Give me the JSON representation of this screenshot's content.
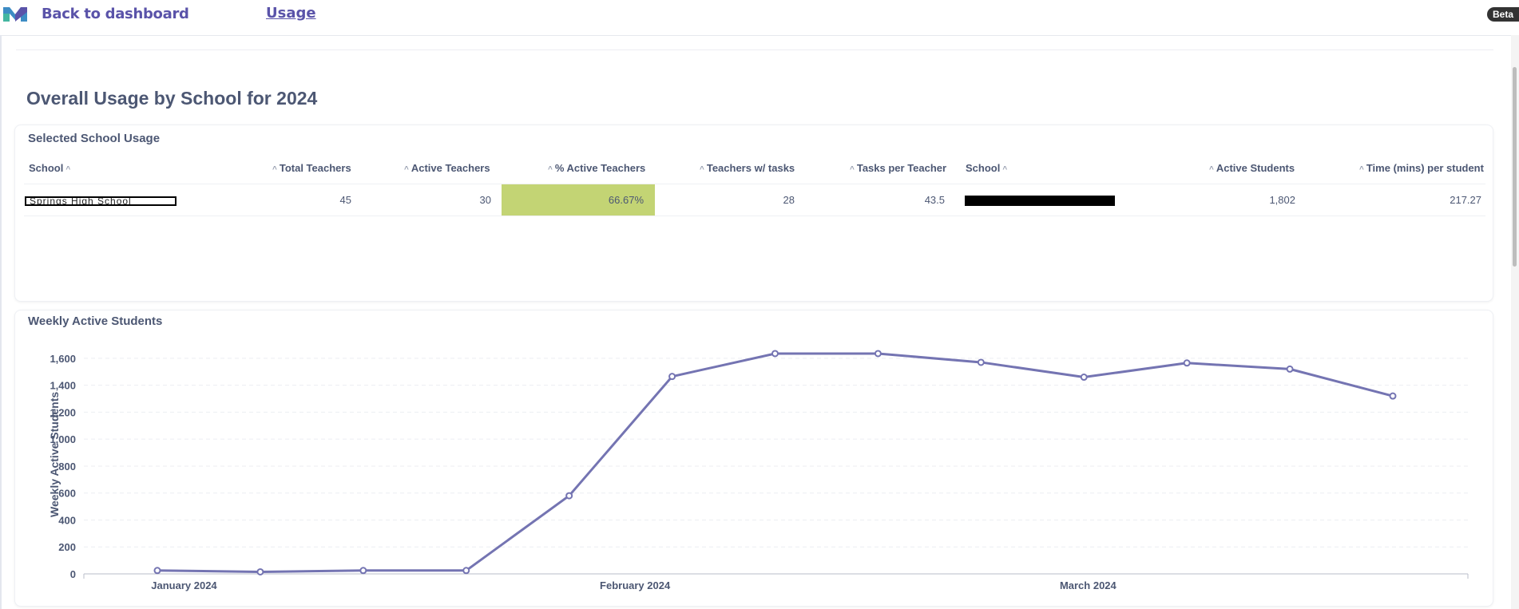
{
  "header": {
    "back_label": "Back to dashboard",
    "usage_label": "Usage",
    "beta_label": "Beta"
  },
  "page": {
    "title": "Overall Usage by School for 2024"
  },
  "school_usage": {
    "title": "Selected School Usage",
    "columns": [
      "School",
      "Total Teachers",
      "Active Teachers",
      "% Active Teachers",
      "Teachers w/ tasks",
      "Tasks per Teacher",
      "School",
      "Active Students",
      "Time (mins) per student"
    ],
    "row": {
      "school": "Springs High School",
      "total_teachers": "45",
      "active_teachers": "30",
      "pct_active": "66.67%",
      "teachers_with_tasks": "28",
      "tasks_per_teacher": "43.5",
      "active_students": "1,802",
      "time_per_student": "217.27"
    },
    "highlight_color": "#c3d474"
  },
  "chart": {
    "title": "Weekly Active Students"
  },
  "chart_data": {
    "type": "line",
    "title": "Weekly Active Students",
    "xlabel": "",
    "ylabel": "Weekly Active Students",
    "ylim": [
      0,
      1700
    ],
    "yticks": [
      "0",
      "200",
      "400",
      "600",
      "800",
      "1,000",
      "1,200",
      "1,400",
      "1,600"
    ],
    "ytick_values": [
      0,
      200,
      400,
      600,
      800,
      1000,
      1200,
      1400,
      1600
    ],
    "xtick_labels": [
      "January 2024",
      "February 2024",
      "March 2024"
    ],
    "xtick_index": [
      0.12,
      4.5,
      8.9
    ],
    "grid": true,
    "color": "#7474b2",
    "series": [
      {
        "values": [
          25,
          15,
          25,
          25,
          580,
          1465,
          1635,
          1635,
          1570,
          1460,
          1565,
          1520,
          1320
        ]
      }
    ]
  }
}
